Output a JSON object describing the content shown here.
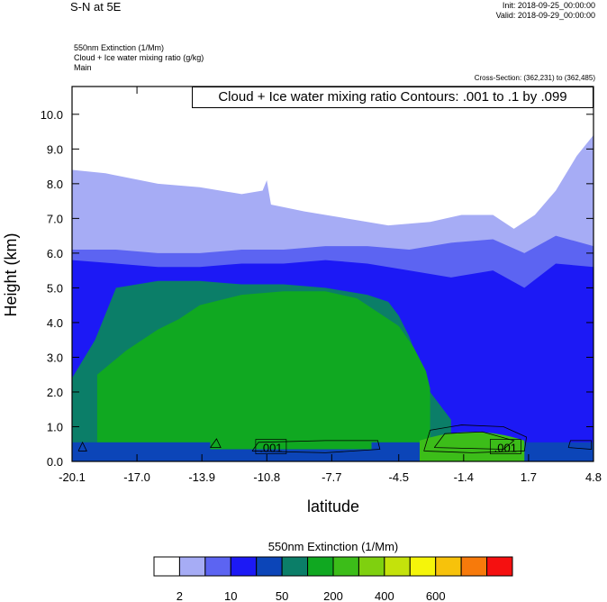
{
  "header": {
    "title": "S-N at 5E",
    "init": "Init: 2018-09-25_00:00:00",
    "valid": "Valid: 2018-09-29_00:00:00",
    "variables": [
      "550nm Extinction   (1/Mm)",
      "Cloud + Ice water mixing ratio   (g/kg)",
      "Main"
    ],
    "cross_section": "Cross-Section: (362,231) to (362,485)",
    "contour_info": "Cloud + Ice water mixing ratio Contours: .001 to .1 by .099"
  },
  "colorbar": {
    "title": "550nm Extinction  (1/Mm)",
    "colors": [
      "#ffffff",
      "#a6acf5",
      "#5c64f2",
      "#1c19f5",
      "#0c45b8",
      "#0b7e68",
      "#10a821",
      "#3cbd19",
      "#7fd00f",
      "#c4e20b",
      "#f5f50a",
      "#f7c20b",
      "#f77a0b",
      "#f51010"
    ],
    "labels": [
      "2",
      "10",
      "50",
      "200",
      "400",
      "600"
    ]
  },
  "chart_data": {
    "type": "heatmap",
    "xlabel": "latitude",
    "ylabel": "Height (km)",
    "xticks": [
      "-20.1",
      "-17.0",
      "-13.9",
      "-10.8",
      "-7.7",
      "-4.5",
      "-1.4",
      "1.7",
      "4.8"
    ],
    "yticks": [
      "0.0",
      "1.0",
      "2.0",
      "3.0",
      "4.0",
      "5.0",
      "6.0",
      "7.0",
      "8.0",
      "9.0",
      "10.0"
    ],
    "xlim": [
      -20.1,
      4.8
    ],
    "ylim": [
      0,
      10.8
    ],
    "fill_levels_height_km": [
      {
        "name": "2",
        "color": "#a6acf5",
        "x": [
          -20.1,
          -18.5,
          -16,
          -14,
          -12,
          -11,
          -10.8,
          -10.6,
          -9,
          -7,
          -5,
          -3,
          -1.5,
          0,
          1,
          2,
          3,
          4,
          4.8
        ],
        "top": [
          8.4,
          8.3,
          8.0,
          7.9,
          7.7,
          7.8,
          8.1,
          7.4,
          7.2,
          7.0,
          6.8,
          6.9,
          7.1,
          7.1,
          6.7,
          7.1,
          7.8,
          8.8,
          9.4
        ]
      },
      {
        "name": "10",
        "color": "#5c64f2",
        "x": [
          -20.1,
          -18,
          -16,
          -14,
          -12,
          -10,
          -8,
          -6,
          -4,
          -2,
          0,
          1.5,
          3,
          4.8
        ],
        "top": [
          6.1,
          6.1,
          6.0,
          6.0,
          6.1,
          6.1,
          6.2,
          6.2,
          6.1,
          6.3,
          6.4,
          6.0,
          6.5,
          6.2
        ]
      },
      {
        "name": "50",
        "color": "#1c19f5",
        "x": [
          -20.1,
          -18,
          -16,
          -14,
          -12,
          -10,
          -8,
          -6,
          -4,
          -2,
          0,
          1.5,
          3,
          4.8
        ],
        "top": [
          5.8,
          5.7,
          5.6,
          5.6,
          5.7,
          5.7,
          5.8,
          5.7,
          5.5,
          5.3,
          5.5,
          5.0,
          5.7,
          5.6
        ]
      },
      {
        "name": "200",
        "color": "#0b7e68",
        "x": [
          -20.1,
          -19,
          -18,
          -16,
          -14,
          -12,
          -10,
          -8,
          -6,
          -5,
          -4.5,
          -4,
          -3.5,
          -3,
          -2
        ],
        "top": [
          2.4,
          3.5,
          5.0,
          5.2,
          5.2,
          5.1,
          5.1,
          5.0,
          4.8,
          4.6,
          4.2,
          3.6,
          2.8,
          2.0,
          1.2
        ]
      },
      {
        "name": "400",
        "color": "#10a821",
        "x": [
          -18.9,
          -17.5,
          -16,
          -15,
          -14,
          -12,
          -10,
          -8,
          -6.5,
          -5.5,
          -4.5,
          -3.8,
          -3.2,
          -3.0
        ],
        "top": [
          2.5,
          3.2,
          3.8,
          4.1,
          4.5,
          4.8,
          4.9,
          4.9,
          4.7,
          4.3,
          3.9,
          3.3,
          2.6,
          2.1
        ]
      }
    ],
    "contour_labels": [
      {
        "x": -10.6,
        "y": 0.4,
        "text": ".001"
      },
      {
        "x": 0.6,
        "y": 0.4,
        "text": ".001"
      }
    ]
  }
}
